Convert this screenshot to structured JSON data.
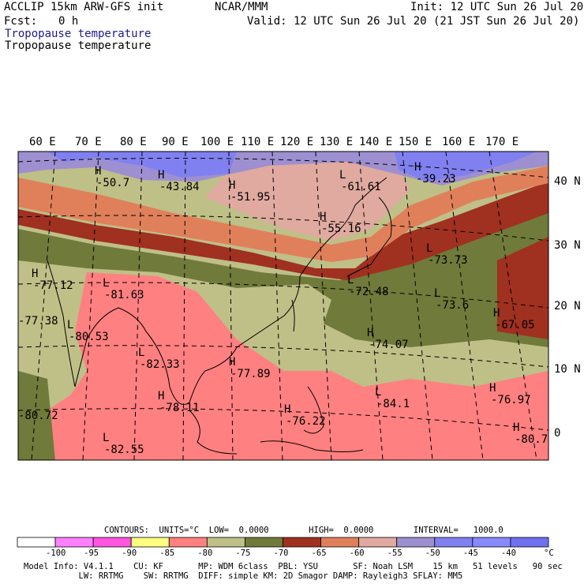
{
  "header": {
    "model": "ACCLIP 15km ARW-GFS init",
    "org": "NCAR/MMM",
    "init": "Init: 12 UTC Sun 26 Jul 20",
    "fcst_label": "Fcst:",
    "fcst_value": "0 h",
    "valid": "Valid: 12 UTC Sun 26 Jul 20 (21 JST Sun 26 Jul 20)",
    "field_title_1": "Tropopause temperature",
    "field_title_2": "Tropopause temperature"
  },
  "map": {
    "lon_labels": [
      "60 E",
      "70 E",
      "80 E",
      "90 E",
      "100 E",
      "110 E",
      "120 E",
      "130 E",
      "140 E",
      "150 E",
      "160 E",
      "170 E"
    ],
    "lat_labels": [
      "40 N",
      "30 N",
      "20 N",
      "10 N",
      "0"
    ],
    "markers": [
      {
        "type": "H",
        "value": "-50.7"
      },
      {
        "type": "H",
        "value": "-43.84"
      },
      {
        "type": "H",
        "value": "-51.95"
      },
      {
        "type": "L",
        "value": "-61.61"
      },
      {
        "type": "H",
        "value": "-39.23"
      },
      {
        "type": "H",
        "value": "-55.16"
      },
      {
        "type": "L",
        "value": "-73.73"
      },
      {
        "type": "H",
        "value": "-77.12"
      },
      {
        "type": "L",
        "value": "-81.63"
      },
      {
        "type": "L",
        "value": "-72.48"
      },
      {
        "type": "L",
        "value": "-73.6"
      },
      {
        "type": "H",
        "value": "-67.05"
      },
      {
        "type": "L",
        "value": "-80.53"
      },
      {
        "type": "H",
        "value": "-74.07"
      },
      {
        "type": "L",
        "value": "-82.33"
      },
      {
        "type": "H",
        "value": "-77.89"
      },
      {
        "type": "H",
        "value": "-76.97"
      },
      {
        "type": "H",
        "value": "-78.11"
      },
      {
        "type": "L",
        "value": "-84.1"
      },
      {
        "type": "H",
        "value": "-76.22"
      },
      {
        "type": "H",
        "value": "-80.7"
      },
      {
        "type": "L",
        "value": "-82.55"
      },
      {
        "type": "",
        "value": "-80.72"
      },
      {
        "type": "",
        "value": "-77.38"
      }
    ]
  },
  "footer": {
    "contours_line": "CONTOURS:  UNITS=°C  LOW=  0.0000        HIGH=  0.0000        INTERVAL=   1000.0",
    "colorbar_ticks": [
      "-100",
      "-95",
      "-90",
      "-85",
      "-80",
      "-75",
      "-70",
      "-65",
      "-60",
      "-55",
      "-50",
      "-45",
      "-40"
    ],
    "colorbar_unit": "°C",
    "colorbar_colors": [
      "#ffffff",
      "#ff80ff",
      "#ff55e0",
      "#ffff80",
      "#ff8080",
      "#bfbf88",
      "#707a3a",
      "#a03020",
      "#e0805a",
      "#e0aaa0",
      "#9e8fd0",
      "#8080f0",
      "#8888ff",
      "#7070f0"
    ],
    "info_line_1": "Model Info: V4.1.1    CU: KF       MP: WDM 6class  PBL: YSU       SF: Noah LSM    15 km   51 levels   90 sec",
    "info_line_2": "           LW: RRTMG    SW: RRTMG  DIFF: simple KM: 2D Smagor DAMP: Rayleigh3 SFLAY: MM5"
  }
}
